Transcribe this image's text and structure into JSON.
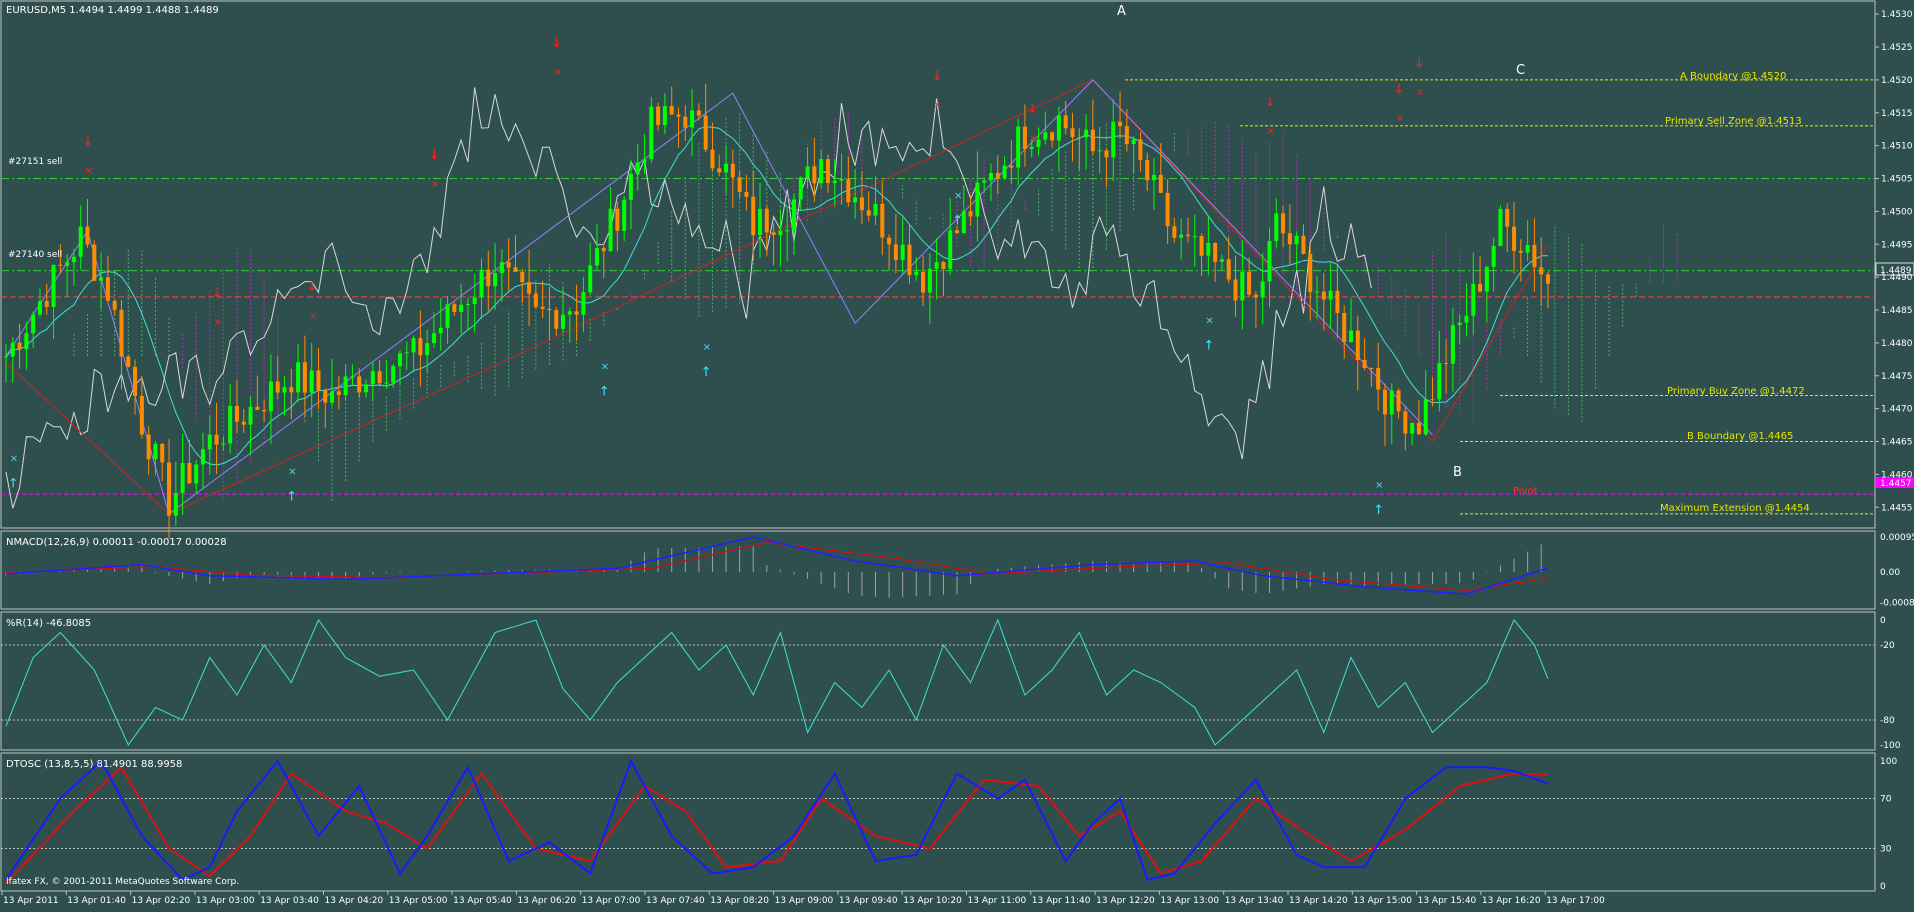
{
  "colors": {
    "background": "#2f4f4f",
    "frame": "#c0c0c0",
    "bull_candle": "#00ff00",
    "bear_candle": "#ff8c00",
    "ema_cyan": "#40e0d0",
    "white_line": "#d8d8d8",
    "zigzag_red": "#d22020",
    "zigzag_violet": "#9b7dff",
    "cloud_magenta": "#b030b0",
    "cloud_green": "#4caf6a",
    "signal_red": "#ff2020",
    "signal_cyan": "#40e0ff",
    "level_yellow": "#e6e600",
    "trade_green": "#32cd32",
    "pivot_magenta": "#ff00ff",
    "bid_red": "#ff4040",
    "macd_line": "#2020ff",
    "macd_signal": "#cc1010",
    "wpr_line": "#40e0d0",
    "dtosc_fast": "#1a1aff",
    "dtosc_slow": "#e01010"
  },
  "main": {
    "header": "EURUSD,M5  1.4494 1.4499 1.4488 1.4489",
    "price_ticks": [
      "1.4530",
      "1.4525",
      "1.4520",
      "1.4515",
      "1.4510",
      "1.4505",
      "1.4500",
      "1.4495",
      "1.4490",
      "1.4485",
      "1.4480",
      "1.4475",
      "1.4470",
      "1.4465",
      "1.4460",
      "1.4455"
    ],
    "current_price_tag": "1.4489",
    "pivot_tag": "1.4457",
    "wave_labels": {
      "a": "A",
      "b": "B",
      "c": "C"
    },
    "pivot_label": "Pivot",
    "levels": {
      "a_boundary": "A Boundary @1.4520",
      "sell_zone": "Primary Sell Zone @1.4513",
      "buy_zone": "Primary Buy Zone @1.4472",
      "b_boundary": "B Boundary @1.4465",
      "max_extension": "Maximum Extension @1.4454"
    },
    "trades": {
      "t1": "#27151 sell",
      "t2": "#27140 sell"
    }
  },
  "macd": {
    "header": "NMACD(12,26,9) 0.00011 -0.00017 0.00028",
    "ticks": [
      "0.00095",
      "0.00",
      "-0.00083"
    ]
  },
  "wpr": {
    "header": "%R(14) -46.8085",
    "ticks": [
      "0",
      "-20",
      "-80",
      "-100"
    ]
  },
  "dtosc": {
    "header": "DTOSC (13,8,5,5) 81.4901 88.9958",
    "ticks": [
      "100",
      "70",
      "30",
      "0"
    ]
  },
  "time_axis": [
    "13 Apr 2011",
    "13 Apr 01:40",
    "13 Apr 02:20",
    "13 Apr 03:00",
    "13 Apr 03:40",
    "13 Apr 04:20",
    "13 Apr 05:00",
    "13 Apr 05:40",
    "13 Apr 06:20",
    "13 Apr 07:00",
    "13 Apr 07:40",
    "13 Apr 08:20",
    "13 Apr 09:00",
    "13 Apr 09:40",
    "13 Apr 10:20",
    "13 Apr 11:00",
    "13 Apr 11:40",
    "13 Apr 12:20",
    "13 Apr 13:00",
    "13 Apr 13:40",
    "13 Apr 14:20",
    "13 Apr 15:00",
    "13 Apr 15:40",
    "13 Apr 16:20",
    "13 Apr 17:00"
  ],
  "copyright": "Ifatex FX, © 2001-2011 MetaQuotes Software Corp.",
  "chart_data": {
    "type": "candlestick",
    "symbol": "EURUSD",
    "timeframe": "M5",
    "ylim": [
      1.4452,
      1.4532
    ],
    "current_price": 1.4489,
    "close_keys": [
      [
        0,
        1.4478
      ],
      [
        6,
        1.4488
      ],
      [
        11,
        1.4496
      ],
      [
        15,
        1.4488
      ],
      [
        20,
        1.4468
      ],
      [
        24,
        1.4456
      ],
      [
        30,
        1.4465
      ],
      [
        36,
        1.447
      ],
      [
        42,
        1.4475
      ],
      [
        48,
        1.4472
      ],
      [
        54,
        1.4476
      ],
      [
        60,
        1.4478
      ],
      [
        66,
        1.4485
      ],
      [
        72,
        1.4492
      ],
      [
        78,
        1.4484
      ],
      [
        84,
        1.4486
      ],
      [
        90,
        1.45
      ],
      [
        95,
        1.4513
      ],
      [
        100,
        1.4515
      ],
      [
        105,
        1.4508
      ],
      [
        110,
        1.4498
      ],
      [
        115,
        1.45
      ],
      [
        120,
        1.4508
      ],
      [
        125,
        1.4503
      ],
      [
        130,
        1.4497
      ],
      [
        135,
        1.449
      ],
      [
        140,
        1.4497
      ],
      [
        145,
        1.4505
      ],
      [
        150,
        1.4512
      ],
      [
        155,
        1.4514
      ],
      [
        160,
        1.4509
      ],
      [
        164,
        1.4512
      ],
      [
        168,
        1.4505
      ],
      [
        172,
        1.4496
      ],
      [
        176,
        1.4493
      ],
      [
        180,
        1.449
      ],
      [
        184,
        1.4486
      ],
      [
        187,
        1.4498
      ],
      [
        190,
        1.4494
      ],
      [
        195,
        1.4485
      ],
      [
        200,
        1.4478
      ],
      [
        204,
        1.447
      ],
      [
        208,
        1.4468
      ],
      [
        212,
        1.4478
      ],
      [
        216,
        1.4487
      ],
      [
        220,
        1.4498
      ],
      [
        224,
        1.4495
      ],
      [
        227,
        1.4489
      ]
    ],
    "levels": {
      "a_boundary": 1.452,
      "sell_zone": 1.4513,
      "buy_zone": 1.4472,
      "b_boundary": 1.4465,
      "max_extension": 1.4454,
      "pivot": 1.4457,
      "trade_27151": 1.4505,
      "trade_27140": 1.4491
    },
    "macd_keys": [
      [
        0,
        -5e-05
      ],
      [
        20,
        0.0002
      ],
      [
        30,
        -0.0001
      ],
      [
        50,
        -0.0002
      ],
      [
        70,
        -5e-05
      ],
      [
        90,
        0.0001
      ],
      [
        110,
        0.00095
      ],
      [
        125,
        0.0003
      ],
      [
        140,
        -0.0001
      ],
      [
        160,
        0.0002
      ],
      [
        175,
        0.0003
      ],
      [
        185,
        -0.0001
      ],
      [
        200,
        -0.0004
      ],
      [
        215,
        -0.0006
      ],
      [
        227,
        0.00011
      ]
    ],
    "macd_signal_keys": [
      [
        0,
        -2e-05
      ],
      [
        22,
        0.00015
      ],
      [
        35,
        -8e-05
      ],
      [
        55,
        -0.00015
      ],
      [
        75,
        -3e-05
      ],
      [
        95,
        0.0001
      ],
      [
        112,
        0.0008
      ],
      [
        130,
        0.0004
      ],
      [
        145,
        -5e-05
      ],
      [
        165,
        0.00015
      ],
      [
        180,
        0.00025
      ],
      [
        195,
        -0.0002
      ],
      [
        215,
        -0.0005
      ],
      [
        227,
        -0.00017
      ]
    ],
    "wpr_keys": [
      [
        0,
        -85
      ],
      [
        4,
        -30
      ],
      [
        8,
        -10
      ],
      [
        13,
        -40
      ],
      [
        18,
        -100
      ],
      [
        22,
        -70
      ],
      [
        26,
        -80
      ],
      [
        30,
        -30
      ],
      [
        34,
        -60
      ],
      [
        38,
        -20
      ],
      [
        42,
        -50
      ],
      [
        46,
        0
      ],
      [
        50,
        -30
      ],
      [
        55,
        -45
      ],
      [
        60,
        -40
      ],
      [
        65,
        -80
      ],
      [
        68,
        -50
      ],
      [
        72,
        -10
      ],
      [
        78,
        0
      ],
      [
        82,
        -55
      ],
      [
        86,
        -80
      ],
      [
        90,
        -50
      ],
      [
        94,
        -30
      ],
      [
        98,
        -10
      ],
      [
        102,
        -40
      ],
      [
        106,
        -20
      ],
      [
        110,
        -60
      ],
      [
        114,
        -10
      ],
      [
        118,
        -90
      ],
      [
        122,
        -50
      ],
      [
        126,
        -70
      ],
      [
        130,
        -40
      ],
      [
        134,
        -80
      ],
      [
        138,
        -20
      ],
      [
        142,
        -50
      ],
      [
        146,
        0
      ],
      [
        150,
        -60
      ],
      [
        154,
        -40
      ],
      [
        158,
        -10
      ],
      [
        162,
        -60
      ],
      [
        166,
        -40
      ],
      [
        170,
        -50
      ],
      [
        175,
        -70
      ],
      [
        178,
        -100
      ],
      [
        182,
        -80
      ],
      [
        186,
        -60
      ],
      [
        190,
        -40
      ],
      [
        194,
        -90
      ],
      [
        198,
        -30
      ],
      [
        202,
        -70
      ],
      [
        206,
        -50
      ],
      [
        210,
        -90
      ],
      [
        214,
        -70
      ],
      [
        218,
        -50
      ],
      [
        222,
        0
      ],
      [
        225,
        -20
      ],
      [
        227,
        -47
      ]
    ],
    "dtosc_fast_keys": [
      [
        0,
        5
      ],
      [
        8,
        70
      ],
      [
        14,
        100
      ],
      [
        20,
        40
      ],
      [
        26,
        5
      ],
      [
        30,
        15
      ],
      [
        34,
        60
      ],
      [
        40,
        100
      ],
      [
        46,
        40
      ],
      [
        52,
        80
      ],
      [
        58,
        10
      ],
      [
        62,
        40
      ],
      [
        68,
        95
      ],
      [
        74,
        20
      ],
      [
        80,
        35
      ],
      [
        86,
        10
      ],
      [
        92,
        100
      ],
      [
        98,
        40
      ],
      [
        104,
        10
      ],
      [
        110,
        15
      ],
      [
        116,
        40
      ],
      [
        122,
        90
      ],
      [
        128,
        20
      ],
      [
        134,
        25
      ],
      [
        140,
        90
      ],
      [
        146,
        70
      ],
      [
        150,
        85
      ],
      [
        156,
        20
      ],
      [
        160,
        50
      ],
      [
        164,
        70
      ],
      [
        168,
        5
      ],
      [
        172,
        10
      ],
      [
        178,
        50
      ],
      [
        184,
        85
      ],
      [
        190,
        25
      ],
      [
        194,
        15
      ],
      [
        200,
        15
      ],
      [
        206,
        70
      ],
      [
        212,
        95
      ],
      [
        218,
        95
      ],
      [
        222,
        92
      ],
      [
        227,
        82
      ]
    ],
    "dtosc_slow_keys": [
      [
        0,
        2
      ],
      [
        10,
        60
      ],
      [
        17,
        95
      ],
      [
        24,
        30
      ],
      [
        30,
        8
      ],
      [
        36,
        40
      ],
      [
        42,
        90
      ],
      [
        50,
        60
      ],
      [
        56,
        50
      ],
      [
        62,
        30
      ],
      [
        70,
        90
      ],
      [
        78,
        30
      ],
      [
        86,
        20
      ],
      [
        94,
        80
      ],
      [
        100,
        60
      ],
      [
        106,
        15
      ],
      [
        114,
        20
      ],
      [
        120,
        70
      ],
      [
        128,
        40
      ],
      [
        136,
        30
      ],
      [
        144,
        85
      ],
      [
        152,
        80
      ],
      [
        158,
        40
      ],
      [
        164,
        60
      ],
      [
        170,
        10
      ],
      [
        176,
        20
      ],
      [
        184,
        70
      ],
      [
        192,
        40
      ],
      [
        198,
        20
      ],
      [
        206,
        45
      ],
      [
        214,
        80
      ],
      [
        222,
        90
      ],
      [
        227,
        89
      ]
    ]
  }
}
